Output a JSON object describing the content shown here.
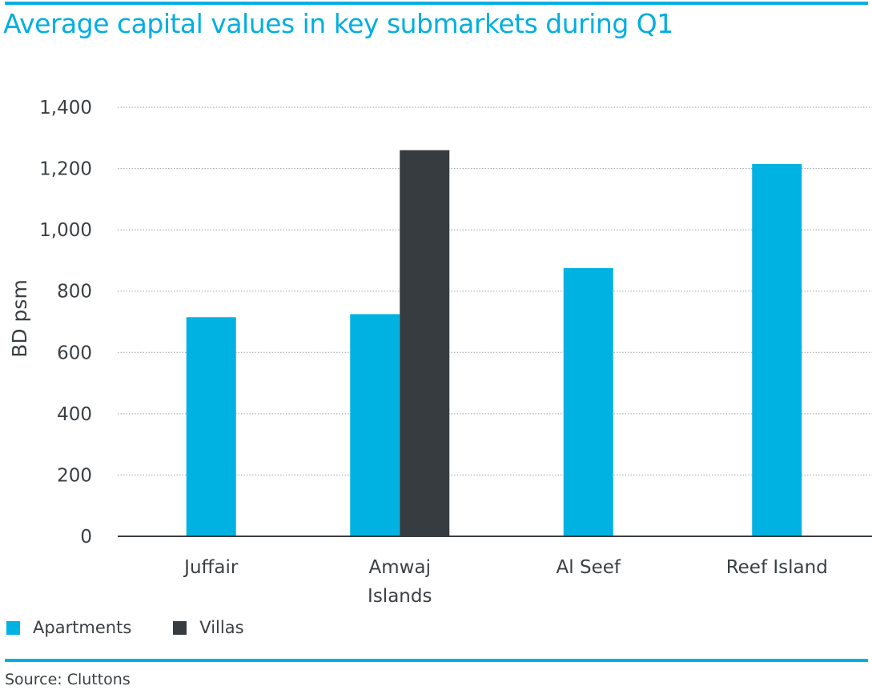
{
  "title": "Average capital values in key submarkets during Q1",
  "source": "Source: Cluttons",
  "colors": {
    "accent": "#00aee0",
    "apartments": "#00b2e2",
    "villas": "#363c3f"
  },
  "chart_data": {
    "type": "bar",
    "categories": [
      [
        "Juffair"
      ],
      [
        "Amwaj",
        "Islands"
      ],
      [
        "Al Seef"
      ],
      [
        "Reef Island"
      ]
    ],
    "series": [
      {
        "name": "Apartments",
        "values": [
          715,
          725,
          875,
          1215
        ]
      },
      {
        "name": "Villas",
        "values": [
          null,
          1260,
          null,
          null
        ]
      }
    ],
    "ylabel": "BD psm",
    "ylim": [
      0,
      1400
    ],
    "yticks": [
      "0",
      "200",
      "400",
      "600",
      "800",
      "1,000",
      "1,200",
      "1,400"
    ],
    "ytick_values": [
      0,
      200,
      400,
      600,
      800,
      1000,
      1200,
      1400
    ],
    "grid": true,
    "legend": "bottom-left"
  }
}
